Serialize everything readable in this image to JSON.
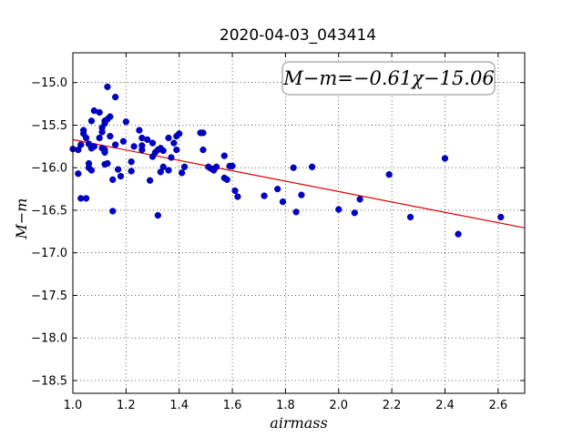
{
  "chart_data": {
    "type": "scatter",
    "title": "2020-04-03_043414",
    "xlabel": "airmass",
    "ylabel": "M−m",
    "xlim": [
      1.0,
      2.7
    ],
    "ylim": [
      -18.65,
      -14.65
    ],
    "y_inverted": true,
    "grid": true,
    "x_ticks": [
      "1.0",
      "1.2",
      "1.4",
      "1.6",
      "1.8",
      "2.0",
      "2.2",
      "2.4",
      "2.6"
    ],
    "y_ticks": [
      "−15.0",
      "−15.5",
      "−16.0",
      "−16.5",
      "−17.0",
      "−17.5",
      "−18.0",
      "−18.5"
    ],
    "annotation": "M−m=−0.61χ−15.06",
    "point_color": "#0000cc",
    "fit_color": "#dd0000",
    "fit": {
      "slope": -0.61,
      "intercept": -15.06
    },
    "points": [
      [
        1.0,
        -15.78
      ],
      [
        1.02,
        -15.79
      ],
      [
        1.03,
        -15.73
      ],
      [
        1.02,
        -16.07
      ],
      [
        1.03,
        -16.36
      ],
      [
        1.04,
        -15.56
      ],
      [
        1.04,
        -15.6
      ],
      [
        1.05,
        -15.65
      ],
      [
        1.05,
        -16.36
      ],
      [
        1.06,
        -15.95
      ],
      [
        1.06,
        -15.72
      ],
      [
        1.06,
        -16.0
      ],
      [
        1.07,
        -15.77
      ],
      [
        1.07,
        -15.77
      ],
      [
        1.07,
        -15.45
      ],
      [
        1.07,
        -16.03
      ],
      [
        1.08,
        -15.33
      ],
      [
        1.08,
        -15.75
      ],
      [
        1.1,
        -15.35
      ],
      [
        1.1,
        -15.65
      ],
      [
        1.11,
        -15.53
      ],
      [
        1.11,
        -15.58
      ],
      [
        1.11,
        -15.77
      ],
      [
        1.12,
        -15.45
      ],
      [
        1.12,
        -15.48
      ],
      [
        1.12,
        -15.79
      ],
      [
        1.12,
        -15.82
      ],
      [
        1.12,
        -15.96
      ],
      [
        1.13,
        -15.43
      ],
      [
        1.13,
        -15.95
      ],
      [
        1.13,
        -15.05
      ],
      [
        1.14,
        -15.4
      ],
      [
        1.14,
        -15.63
      ],
      [
        1.15,
        -16.51
      ],
      [
        1.15,
        -16.14
      ],
      [
        1.16,
        -15.73
      ],
      [
        1.16,
        -15.17
      ],
      [
        1.17,
        -16.02
      ],
      [
        1.18,
        -16.1
      ],
      [
        1.19,
        -15.69
      ],
      [
        1.2,
        -15.46
      ],
      [
        1.22,
        -15.93
      ],
      [
        1.22,
        -16.04
      ],
      [
        1.23,
        -15.75
      ],
      [
        1.25,
        -15.56
      ],
      [
        1.26,
        -15.65
      ],
      [
        1.26,
        -15.74
      ],
      [
        1.26,
        -15.79
      ],
      [
        1.28,
        -15.67
      ],
      [
        1.29,
        -16.15
      ],
      [
        1.3,
        -15.71
      ],
      [
        1.3,
        -15.87
      ],
      [
        1.31,
        -15.82
      ],
      [
        1.32,
        -16.56
      ],
      [
        1.32,
        -15.79
      ],
      [
        1.33,
        -16.05
      ],
      [
        1.33,
        -15.77
      ],
      [
        1.34,
        -15.99
      ],
      [
        1.34,
        -15.8
      ],
      [
        1.36,
        -16.03
      ],
      [
        1.36,
        -15.65
      ],
      [
        1.37,
        -15.88
      ],
      [
        1.38,
        -15.71
      ],
      [
        1.39,
        -15.63
      ],
      [
        1.39,
        -15.79
      ],
      [
        1.4,
        -15.6
      ],
      [
        1.41,
        -16.06
      ],
      [
        1.42,
        -15.99
      ],
      [
        1.48,
        -15.59
      ],
      [
        1.49,
        -15.59
      ],
      [
        1.49,
        -15.79
      ],
      [
        1.51,
        -15.99
      ],
      [
        1.52,
        -16.01
      ],
      [
        1.53,
        -16.03
      ],
      [
        1.54,
        -15.99
      ],
      [
        1.57,
        -15.86
      ],
      [
        1.57,
        -16.12
      ],
      [
        1.58,
        -16.14
      ],
      [
        1.59,
        -15.98
      ],
      [
        1.6,
        -15.98
      ],
      [
        1.61,
        -16.27
      ],
      [
        1.62,
        -16.34
      ],
      [
        1.72,
        -16.33
      ],
      [
        1.77,
        -16.25
      ],
      [
        1.79,
        -16.4
      ],
      [
        1.83,
        -16.0
      ],
      [
        1.84,
        -16.52
      ],
      [
        1.86,
        -16.32
      ],
      [
        1.9,
        -15.99
      ],
      [
        2.0,
        -16.49
      ],
      [
        2.06,
        -16.53
      ],
      [
        2.08,
        -16.37
      ],
      [
        2.19,
        -16.08
      ],
      [
        2.27,
        -16.58
      ],
      [
        2.4,
        -15.89
      ],
      [
        2.45,
        -16.78
      ],
      [
        2.61,
        -16.58
      ]
    ]
  }
}
